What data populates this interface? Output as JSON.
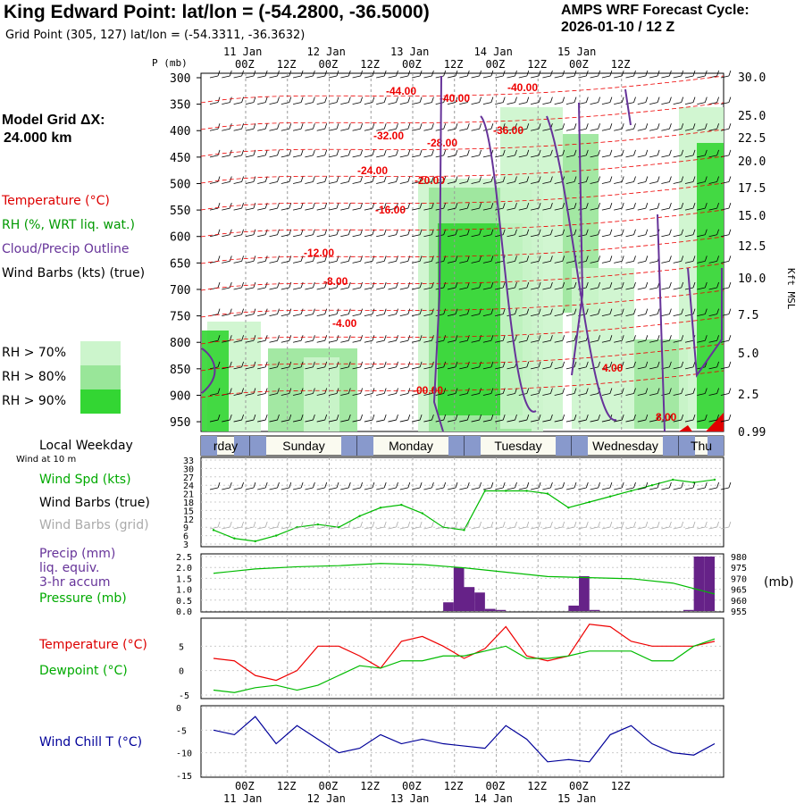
{
  "header": {
    "title": "King Edward Point:  lat/lon = (-54.2800, -36.5000)",
    "subtitle": "Grid Point (305, 127) lat/lon = (-54.3311, -36.3632)",
    "cycle_line1": "AMPS WRF Forecast Cycle:",
    "cycle_line2": "2026-01-10 / 12  Z"
  },
  "model_grid": {
    "label": "Model Grid ΔX:",
    "value": "24.000 km"
  },
  "legend": {
    "temperature": "Temperature (°C)",
    "rh": "RH (%, WRT liq. wat.)",
    "cloud": "Cloud/Precip Outline",
    "wind": "Wind Barbs (kts) (true)",
    "rh70": "RH > 70%",
    "rh80": "RH > 80%",
    "rh90": "RH > 90%",
    "colors": {
      "rh70": "#ccf5cc",
      "rh80": "#99e699",
      "rh90": "#33d633",
      "temp": "#ee0000",
      "cloud": "#663399"
    }
  },
  "time_axis": {
    "ticks": [
      "00Z",
      "12Z",
      "00Z",
      "12Z",
      "00Z",
      "12Z",
      "00Z",
      "12Z",
      "00Z",
      "12Z"
    ],
    "days": [
      "11 Jan",
      "12 Jan",
      "13 Jan",
      "14 Jan",
      "15 Jan"
    ],
    "p_label": "P (mb)",
    "kft_label": "Kft MSL"
  },
  "weekday": {
    "label": "Local Weekday",
    "wind_at": "Wind at 10 m",
    "days": [
      "rday",
      "Sunday",
      "Monday",
      "Tuesday",
      "Wednesday",
      "Thu"
    ]
  },
  "panels": {
    "wind": {
      "spd": "Wind Spd (kts)",
      "barbs_true": "Wind Barbs (true)",
      "barbs_grid": "Wind Barbs (grid)"
    },
    "precip": {
      "l1": "Precip (mm)",
      "l2": "liq. equiv.",
      "l3": "3-hr accum",
      "l4": "Pressure (mb)",
      "unit": "(mb)"
    },
    "temp": {
      "t": "Temperature (°C)",
      "d": "Dewpoint (°C)"
    },
    "chill": {
      "l": "Wind Chill T (°C)"
    }
  },
  "chart_data": [
    {
      "type": "heatmap",
      "title": "",
      "ylabel": "P (mb)",
      "ylim": [
        960,
        300
      ],
      "y_ticks": [
        "300",
        "350",
        "400",
        "450",
        "500",
        "550",
        "600",
        "650",
        "700",
        "750",
        "800",
        "850",
        "900",
        "950"
      ],
      "right_ticks": [
        "30.0",
        "25.0",
        "22.5",
        "20.0",
        "17.5",
        "15.0",
        "12.5",
        "10.0",
        "7.5",
        "5.0",
        "2.5",
        "0.99"
      ],
      "temperature_contours": [
        "-44.00",
        "-40.00",
        "-40.00",
        "-32.00",
        "-36.00",
        "-28.00",
        "-24.00",
        "-20.00",
        "-16.00",
        "-12.00",
        "-8.00",
        "-4.00",
        "-00.00",
        "4.00",
        "8.00"
      ]
    },
    {
      "type": "line",
      "title": "",
      "ylabel": "Wind Spd (kts)",
      "y_ticks": [
        "33",
        "30",
        "27",
        "24",
        "21",
        "18",
        "15",
        "12",
        "9",
        "6",
        "3"
      ],
      "x_hours": [
        0,
        6,
        12,
        18,
        24,
        30,
        36,
        42,
        48,
        54,
        60,
        66,
        72,
        78,
        84,
        90,
        96,
        102,
        108,
        114,
        120,
        126,
        132,
        138,
        144
      ],
      "values": [
        8,
        5,
        4,
        6,
        9,
        10,
        9,
        13,
        16,
        17,
        14,
        9,
        8,
        22,
        22,
        22,
        21,
        16,
        18,
        20,
        22,
        24,
        26,
        25,
        26
      ]
    },
    {
      "type": "bar",
      "title": "",
      "ylabel": "Precip (mm)",
      "y_ticks": [
        "2.5",
        "2.0",
        "1.5",
        "1.0",
        "0.5",
        "0.0"
      ],
      "right_ticks": [
        "980",
        "975",
        "970",
        "965",
        "960",
        "955"
      ],
      "bars": [
        {
          "x": 67.5,
          "value": 0.4
        },
        {
          "x": 70.5,
          "value": 2.0
        },
        {
          "x": 73.5,
          "value": 1.1
        },
        {
          "x": 76.5,
          "value": 0.85
        },
        {
          "x": 79.5,
          "value": 0.1
        },
        {
          "x": 82.5,
          "value": 0.05
        },
        {
          "x": 103.5,
          "value": 0.25
        },
        {
          "x": 106.5,
          "value": 1.6
        },
        {
          "x": 109.5,
          "value": 0.05
        },
        {
          "x": 136.5,
          "value": 0.05
        },
        {
          "x": 139.5,
          "value": 2.5
        },
        {
          "x": 142.5,
          "value": 2.5
        }
      ],
      "pressure": {
        "name": "Pressure (mb)",
        "x_hours": [
          0,
          12,
          24,
          36,
          48,
          60,
          72,
          84,
          96,
          108,
          120,
          132,
          144
        ],
        "values": [
          971.5,
          973.5,
          974.5,
          975,
          976,
          975.5,
          974,
          972,
          970,
          969.5,
          969,
          967,
          962
        ]
      }
    },
    {
      "type": "line",
      "title": "",
      "y_ticks": [
        "5",
        "0",
        "-5"
      ],
      "ylim": [
        -5,
        10
      ],
      "series": [
        {
          "name": "Temperature (°C)",
          "x_hours": [
            0,
            6,
            12,
            18,
            24,
            30,
            36,
            42,
            48,
            54,
            60,
            66,
            72,
            78,
            84,
            90,
            96,
            102,
            108,
            114,
            120,
            126,
            132,
            138,
            144
          ],
          "values": [
            2.5,
            2,
            -1,
            -2,
            0,
            5,
            5,
            3,
            0.5,
            6,
            7,
            5,
            2.5,
            4.5,
            9,
            3,
            2,
            3,
            9.5,
            9,
            6,
            5,
            5,
            5,
            6
          ]
        },
        {
          "name": "Dewpoint (°C)",
          "x_hours": [
            0,
            6,
            12,
            18,
            24,
            30,
            36,
            42,
            48,
            54,
            60,
            66,
            72,
            78,
            84,
            90,
            96,
            102,
            108,
            114,
            120,
            126,
            132,
            138,
            144
          ],
          "values": [
            -4,
            -4.5,
            -3.5,
            -3,
            -4,
            -3,
            -1,
            1,
            0.5,
            2,
            2,
            3,
            3,
            4,
            5,
            2.5,
            2.5,
            3,
            4,
            4,
            4,
            2,
            2,
            5,
            6.5
          ]
        }
      ]
    },
    {
      "type": "line",
      "title": "",
      "y_ticks": [
        "0",
        "-5",
        "-10",
        "-15"
      ],
      "ylim": [
        -15,
        0
      ],
      "series": [
        {
          "name": "Wind Chill T (°C)",
          "x_hours": [
            0,
            6,
            12,
            18,
            24,
            30,
            36,
            42,
            48,
            54,
            60,
            66,
            72,
            78,
            84,
            90,
            96,
            102,
            108,
            114,
            120,
            126,
            132,
            138,
            144
          ],
          "values": [
            -5,
            -6,
            -2,
            -8,
            -4,
            -7,
            -10,
            -9,
            -6,
            -8,
            -7,
            -8,
            -8.5,
            -9,
            -4,
            -7,
            -12,
            -11.5,
            -12,
            -6,
            -4,
            -8,
            -10,
            -10.5,
            -8
          ]
        }
      ]
    }
  ]
}
